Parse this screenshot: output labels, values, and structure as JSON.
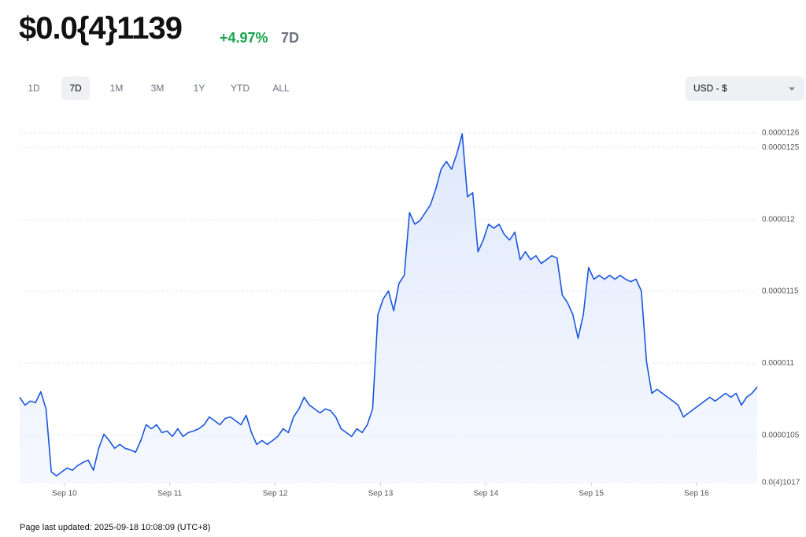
{
  "header": {
    "price": "$0.0{4}1139",
    "change": "+4.97%",
    "period": "7D",
    "tabs": [
      "1D",
      "7D",
      "1M",
      "3M",
      "1Y",
      "YTD",
      "ALL"
    ],
    "selected_tab": "7D",
    "currency": "USD - $"
  },
  "footer": "Page last updated: 2025-09-18 10:08:09 (UTC+8)",
  "chart_data": {
    "type": "line",
    "color": "#1a56db",
    "grid": true,
    "xlim": [
      0,
      140
    ],
    "xticks": [
      {
        "value": 8.5,
        "label": "Sep 10"
      },
      {
        "value": 28.5,
        "label": "Sep 11"
      },
      {
        "value": 48.5,
        "label": "Sep 12"
      },
      {
        "value": 68.5,
        "label": "Sep 13"
      },
      {
        "value": 88.5,
        "label": "Sep 14"
      },
      {
        "value": 108.5,
        "label": "Sep 15"
      },
      {
        "value": 128.5,
        "label": "Sep 16"
      }
    ],
    "ylim": [
      1.017e-05,
      1.26e-05
    ],
    "yticks": [
      1.26e-05,
      1.25e-05,
      1.2e-05,
      1.15e-05,
      1.1e-05,
      1.05e-05,
      {
        "value": 1.017e-05,
        "label": "0.0(4)1017"
      }
    ],
    "values": [
      1.0764e-05,
      1.0709e-05,
      1.0737e-05,
      1.0726e-05,
      1.0802e-05,
      1.0682e-05,
      1.0245e-05,
      1.0217e-05,
      1.0245e-05,
      1.0272e-05,
      1.0256e-05,
      1.0289e-05,
      1.031e-05,
      1.0327e-05,
      1.0256e-05,
      1.0409e-05,
      1.0507e-05,
      1.0463e-05,
      1.0409e-05,
      1.0436e-05,
      1.0409e-05,
      1.0398e-05,
      1.0381e-05,
      1.0463e-05,
      1.0573e-05,
      1.0545e-05,
      1.0573e-05,
      1.0518e-05,
      1.0529e-05,
      1.0491e-05,
      1.0545e-05,
      1.0491e-05,
      1.0518e-05,
      1.0529e-05,
      1.0545e-05,
      1.0573e-05,
      1.0627e-05,
      1.06e-05,
      1.0573e-05,
      1.0616e-05,
      1.0627e-05,
      1.06e-05,
      1.0573e-05,
      1.0638e-05,
      1.0518e-05,
      1.0436e-05,
      1.0463e-05,
      1.0436e-05,
      1.0463e-05,
      1.0491e-05,
      1.0545e-05,
      1.0518e-05,
      1.0627e-05,
      1.0682e-05,
      1.0764e-05,
      1.0709e-05,
      1.0682e-05,
      1.0655e-05,
      1.0682e-05,
      1.0671e-05,
      1.0627e-05,
      1.0545e-05,
      1.0518e-05,
      1.0491e-05,
      1.0545e-05,
      1.0518e-05,
      1.0573e-05,
      1.0682e-05,
      1.1338e-05,
      1.1447e-05,
      1.1502e-05,
      1.1365e-05,
      1.1556e-05,
      1.1611e-05,
      1.2048e-05,
      1.1966e-05,
      1.1993e-05,
      1.2048e-05,
      1.2103e-05,
      1.2212e-05,
      1.2349e-05,
      1.2403e-05,
      1.2349e-05,
      1.2458e-05,
      1.2595e-05,
      1.2157e-05,
      1.2185e-05,
      1.1775e-05,
      1.1857e-05,
      1.1966e-05,
      1.1939e-05,
      1.1966e-05,
      1.1895e-05,
      1.1857e-05,
      1.1911e-05,
      1.172e-05,
      1.1775e-05,
      1.172e-05,
      1.1748e-05,
      1.1693e-05,
      1.172e-05,
      1.1748e-05,
      1.1731e-05,
      1.1474e-05,
      1.142e-05,
      1.1338e-05,
      1.1174e-05,
      1.1338e-05,
      1.1666e-05,
      1.1584e-05,
      1.1611e-05,
      1.1584e-05,
      1.1611e-05,
      1.1584e-05,
      1.1611e-05,
      1.1584e-05,
      1.1567e-05,
      1.1584e-05,
      1.1502e-05,
      1.101e-05,
      1.0791e-05,
      1.0819e-05,
      1.0791e-05,
      1.0764e-05,
      1.0737e-05,
      1.0709e-05,
      1.0627e-05,
      1.0655e-05,
      1.0682e-05,
      1.0709e-05,
      1.0737e-05,
      1.0764e-05,
      1.0737e-05,
      1.0764e-05,
      1.0791e-05,
      1.0764e-05,
      1.0791e-05,
      1.0709e-05,
      1.0764e-05,
      1.0791e-05,
      1.0835e-05
    ]
  }
}
